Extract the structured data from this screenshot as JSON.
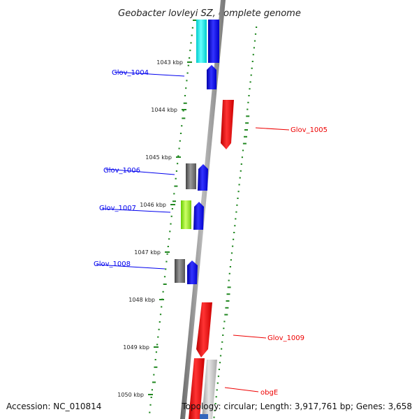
{
  "title": "Geobacter lovleyi SZ, complete genome",
  "footer": {
    "accession": "Accession: NC_010814",
    "topology": "Topology: circular; Length: 3,917,761 bp; Genes: 3,658"
  },
  "colors": {
    "forward_gene": "#0000ee",
    "reverse_gene": "#ee0000",
    "teal_feature": "#00dddd",
    "gray_feature": "#666666",
    "light_gray_feature": "#bbbbbb",
    "green_feature": "#88ee22",
    "gc_dots": "#228822",
    "backbone": "#888888"
  },
  "kbp_ticks": [
    "1043 kbp",
    "1044 kbp",
    "1045 kbp",
    "1046 kbp",
    "1047 kbp",
    "1048 kbp",
    "1049 kbp",
    "1050 kbp"
  ],
  "gene_labels": [
    {
      "text": "Glov_1004",
      "strand": "forward"
    },
    {
      "text": "Glov_1005",
      "strand": "reverse"
    },
    {
      "text": "Glov_1006",
      "strand": "forward"
    },
    {
      "text": "Glov_1007",
      "strand": "forward"
    },
    {
      "text": "Glov_1008",
      "strand": "forward"
    },
    {
      "text": "Glov_1009",
      "strand": "reverse"
    },
    {
      "text": "obgE",
      "strand": "reverse"
    }
  ]
}
